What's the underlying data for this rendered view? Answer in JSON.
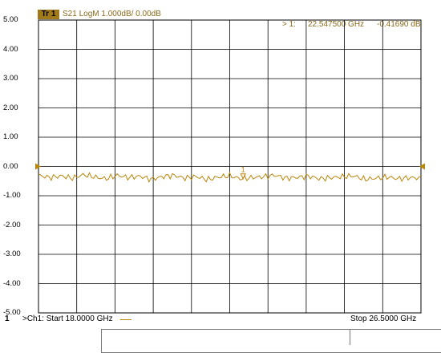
{
  "trace": {
    "badge": "Tr 1",
    "header": "S21 LogM 1.000dB/  0.00dB",
    "color": "#b8860b"
  },
  "marker": {
    "label": "> 1:",
    "frequency": "22.547500 GHz",
    "value": "-0.41690 dB",
    "number": "1"
  },
  "footer": {
    "channel_number": "1",
    "start": ">Ch1: Start  18.0000 GHz",
    "stop": "Stop  26.5000 GHz"
  },
  "chart_data": {
    "type": "line",
    "title": "",
    "xlabel": "",
    "ylabel": "",
    "x_unit": "GHz",
    "xlim": [
      18.0,
      26.5
    ],
    "ylim": [
      -5.0,
      5.0
    ],
    "y_ticks": [
      "5.00",
      "4.00",
      "3.00",
      "2.00",
      "1.00",
      "0.00",
      "-1.00",
      "-2.00",
      "-3.00",
      "-4.00",
      "-5.00"
    ],
    "grid": true,
    "reference_level": 0.0,
    "marker": {
      "x": 22.5475,
      "y": -0.4169
    },
    "series": [
      {
        "values_x": [
          18.0,
          18.25,
          18.5,
          18.75,
          19.0,
          19.25,
          19.5,
          19.75,
          20.0,
          20.25,
          20.5,
          20.75,
          21.0,
          21.25,
          21.5,
          21.75,
          22.0,
          22.25,
          22.5,
          22.75,
          23.0,
          23.25,
          23.5,
          23.75,
          24.0,
          24.25,
          24.5,
          24.75,
          25.0,
          25.25,
          25.5,
          25.75,
          26.0,
          26.25,
          26.5
        ],
        "values_y": [
          -0.3,
          -0.38,
          -0.32,
          -0.4,
          -0.28,
          -0.36,
          -0.42,
          -0.3,
          -0.38,
          -0.33,
          -0.44,
          -0.35,
          -0.3,
          -0.4,
          -0.34,
          -0.45,
          -0.36,
          -0.32,
          -0.42,
          -0.38,
          -0.35,
          -0.3,
          -0.4,
          -0.37,
          -0.33,
          -0.42,
          -0.38,
          -0.35,
          -0.32,
          -0.44,
          -0.4,
          -0.36,
          -0.42,
          -0.38,
          -0.4
        ]
      }
    ]
  }
}
